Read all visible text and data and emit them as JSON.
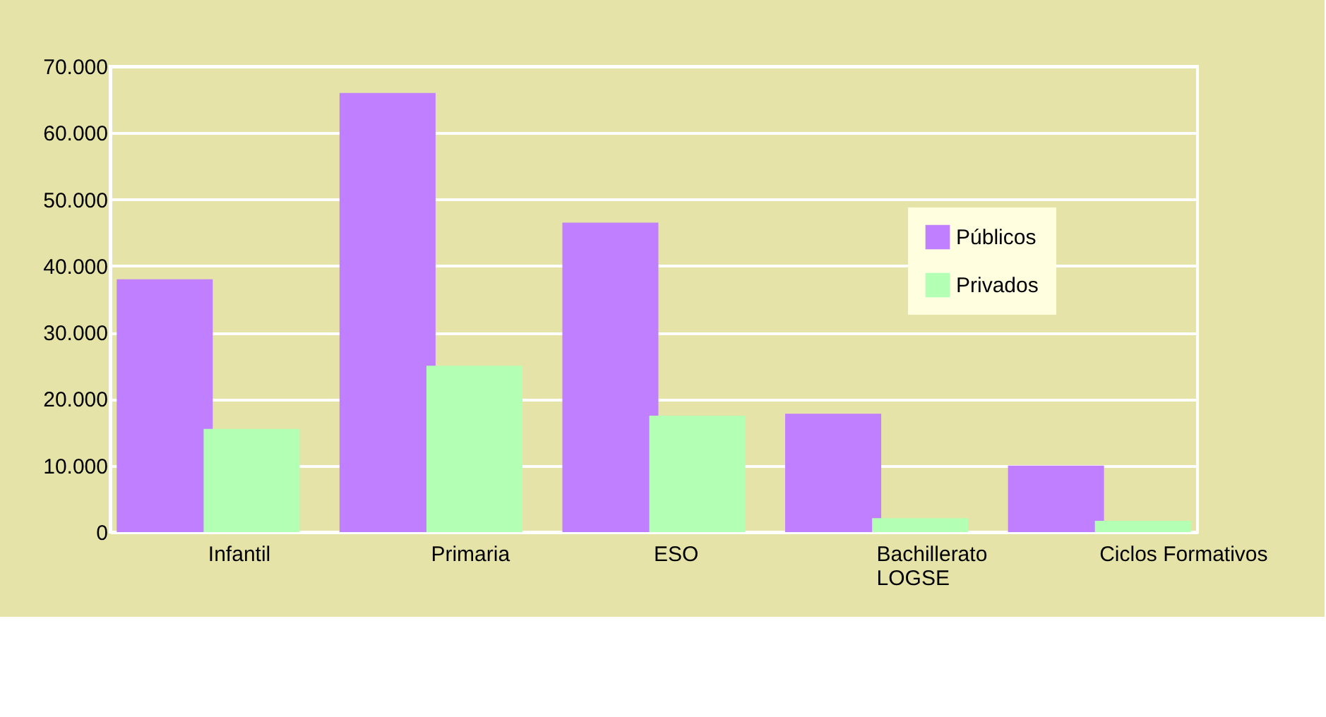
{
  "chart_data": {
    "type": "bar",
    "categories": [
      "Infantil",
      "Primaria",
      "ESO",
      "Bachillerato\nLOGSE",
      "Ciclos Formativos"
    ],
    "series": [
      {
        "name": "Públicos",
        "color": "#bf7fff",
        "values": [
          38000,
          66000,
          46500,
          17800,
          10000
        ]
      },
      {
        "name": "Privados",
        "color": "#b3ffb3",
        "values": [
          15500,
          25000,
          17500,
          2100,
          1700
        ]
      }
    ],
    "ylim": [
      0,
      70000
    ],
    "yticks": [
      {
        "value": 0,
        "label": "0"
      },
      {
        "value": 10000,
        "label": "10.000"
      },
      {
        "value": 20000,
        "label": "20.000"
      },
      {
        "value": 30000,
        "label": "30.000"
      },
      {
        "value": 40000,
        "label": "40.000"
      },
      {
        "value": 50000,
        "label": "50.000"
      },
      {
        "value": 60000,
        "label": "60.000"
      },
      {
        "value": 70000,
        "label": "70.000"
      }
    ],
    "grid": "y",
    "legend": "top right"
  }
}
